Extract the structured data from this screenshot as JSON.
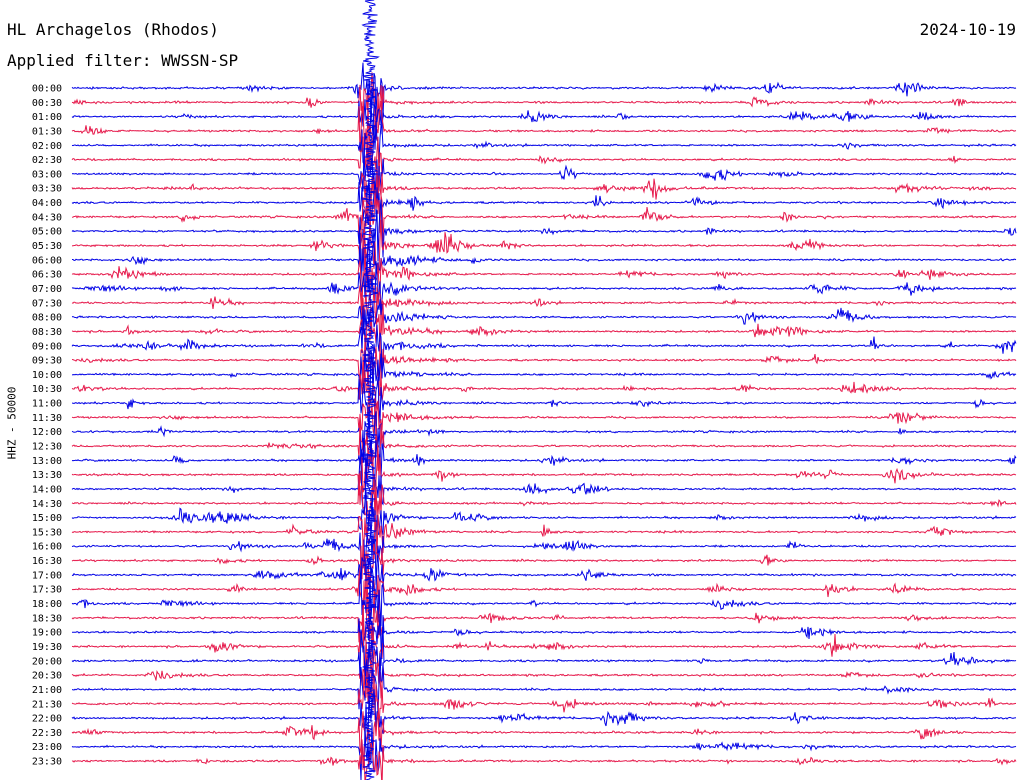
{
  "header": {
    "station": "HL Archagelos (Rhodos)",
    "filter": "Applied filter: WWSSN-SP",
    "date": "2024-10-19"
  },
  "chart_data": {
    "type": "line",
    "title": "HL Archagelos (Rhodos)",
    "subtitle": "Applied filter: WWSSN-SP",
    "ylabel": "HHZ - 50000",
    "xlabel": "",
    "date": "2024-10-19",
    "tick_labels": [
      "00:00",
      "00:30",
      "01:00",
      "01:30",
      "02:00",
      "02:30",
      "03:00",
      "03:30",
      "04:00",
      "04:30",
      "05:00",
      "05:30",
      "06:00",
      "06:30",
      "07:00",
      "07:30",
      "08:00",
      "08:30",
      "09:00",
      "09:30",
      "10:00",
      "10:30",
      "11:00",
      "11:30",
      "12:00",
      "12:30",
      "13:00",
      "13:30",
      "14:00",
      "14:30",
      "15:00",
      "15:30",
      "16:00",
      "16:30",
      "17:00",
      "17:30",
      "18:00",
      "18:30",
      "19:00",
      "19:30",
      "20:00",
      "20:30",
      "21:00",
      "21:30",
      "22:00",
      "22:30",
      "23:00",
      "23:30"
    ],
    "minutes_per_line": 30,
    "series_colors": [
      "#0000e6",
      "#e6194b"
    ],
    "grid": false,
    "legend": "none"
  }
}
